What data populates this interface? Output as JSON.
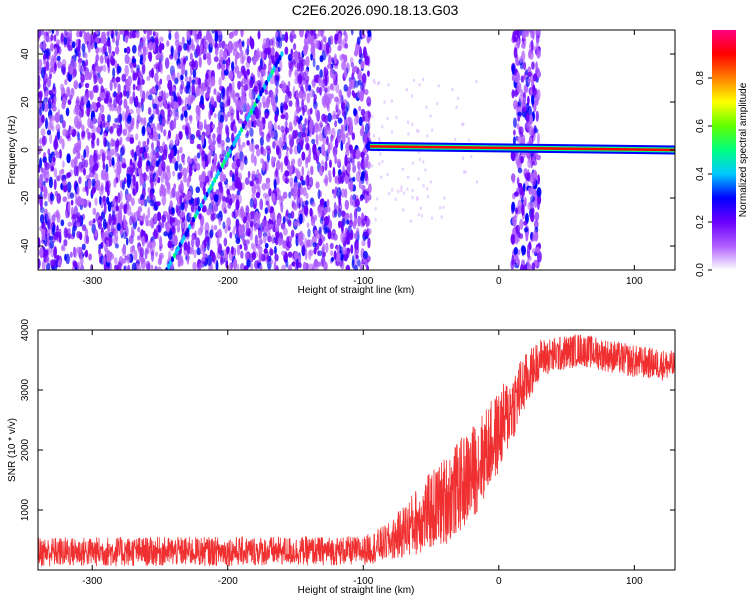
{
  "figure": {
    "title": "C2E6.2026.090.18.13.G03"
  },
  "chart_data": [
    {
      "type": "heatmap",
      "name": "spectrogram",
      "xlabel": "Height of straight line (km)",
      "ylabel": "Frequency (Hz)",
      "xlim": [
        -340,
        130
      ],
      "ylim": [
        -50,
        50
      ],
      "xticks": [
        -300,
        -200,
        -100,
        0,
        100
      ],
      "yticks": [
        -40,
        -20,
        0,
        20,
        40
      ],
      "colorbar": {
        "label": "Normalized spectral amplitude",
        "range": [
          0,
          1
        ],
        "ticks": [
          0.0,
          0.2,
          0.4,
          0.6,
          0.8
        ],
        "colors": [
          "#ffffff",
          "#b060ff",
          "#6a00ff",
          "#0000ff",
          "#00c8ff",
          "#00ff80",
          "#60ff00",
          "#ffff00",
          "#ff8000",
          "#ff0000",
          "#ff0080"
        ]
      },
      "features": {
        "noise_region_x": [
          -340,
          -95
        ],
        "gap_noise_region_x": [
          10,
          30
        ],
        "tone_line": {
          "x": [
            -95,
            130
          ],
          "y": [
            1.5,
            0
          ],
          "amplitude": 0.9
        },
        "diagonal_line": {
          "x": [
            -245,
            -160
          ],
          "y": [
            -50,
            40
          ],
          "amplitude": 0.4
        }
      }
    },
    {
      "type": "line",
      "name": "snr",
      "xlabel": "Height of straight line (km)",
      "ylabel": "SNR (10 * v/v)",
      "xlim": [
        -340,
        130
      ],
      "ylim": [
        0,
        4000
      ],
      "xticks": [
        -300,
        -200,
        -100,
        0,
        100
      ],
      "yticks": [
        1000,
        2000,
        3000,
        4000
      ],
      "color": "#f03030",
      "envelope": [
        {
          "x": -340,
          "low": 50,
          "high": 550
        },
        {
          "x": -100,
          "low": 80,
          "high": 560
        },
        {
          "x": -80,
          "low": 150,
          "high": 800
        },
        {
          "x": -60,
          "low": 250,
          "high": 1400
        },
        {
          "x": -40,
          "low": 400,
          "high": 1900
        },
        {
          "x": -20,
          "low": 800,
          "high": 2400
        },
        {
          "x": 0,
          "low": 1600,
          "high": 3000
        },
        {
          "x": 15,
          "low": 2400,
          "high": 3500
        },
        {
          "x": 30,
          "low": 3200,
          "high": 3850
        },
        {
          "x": 60,
          "low": 3400,
          "high": 3950
        },
        {
          "x": 100,
          "low": 3200,
          "high": 3750
        },
        {
          "x": 130,
          "low": 3150,
          "high": 3650
        }
      ]
    }
  ]
}
